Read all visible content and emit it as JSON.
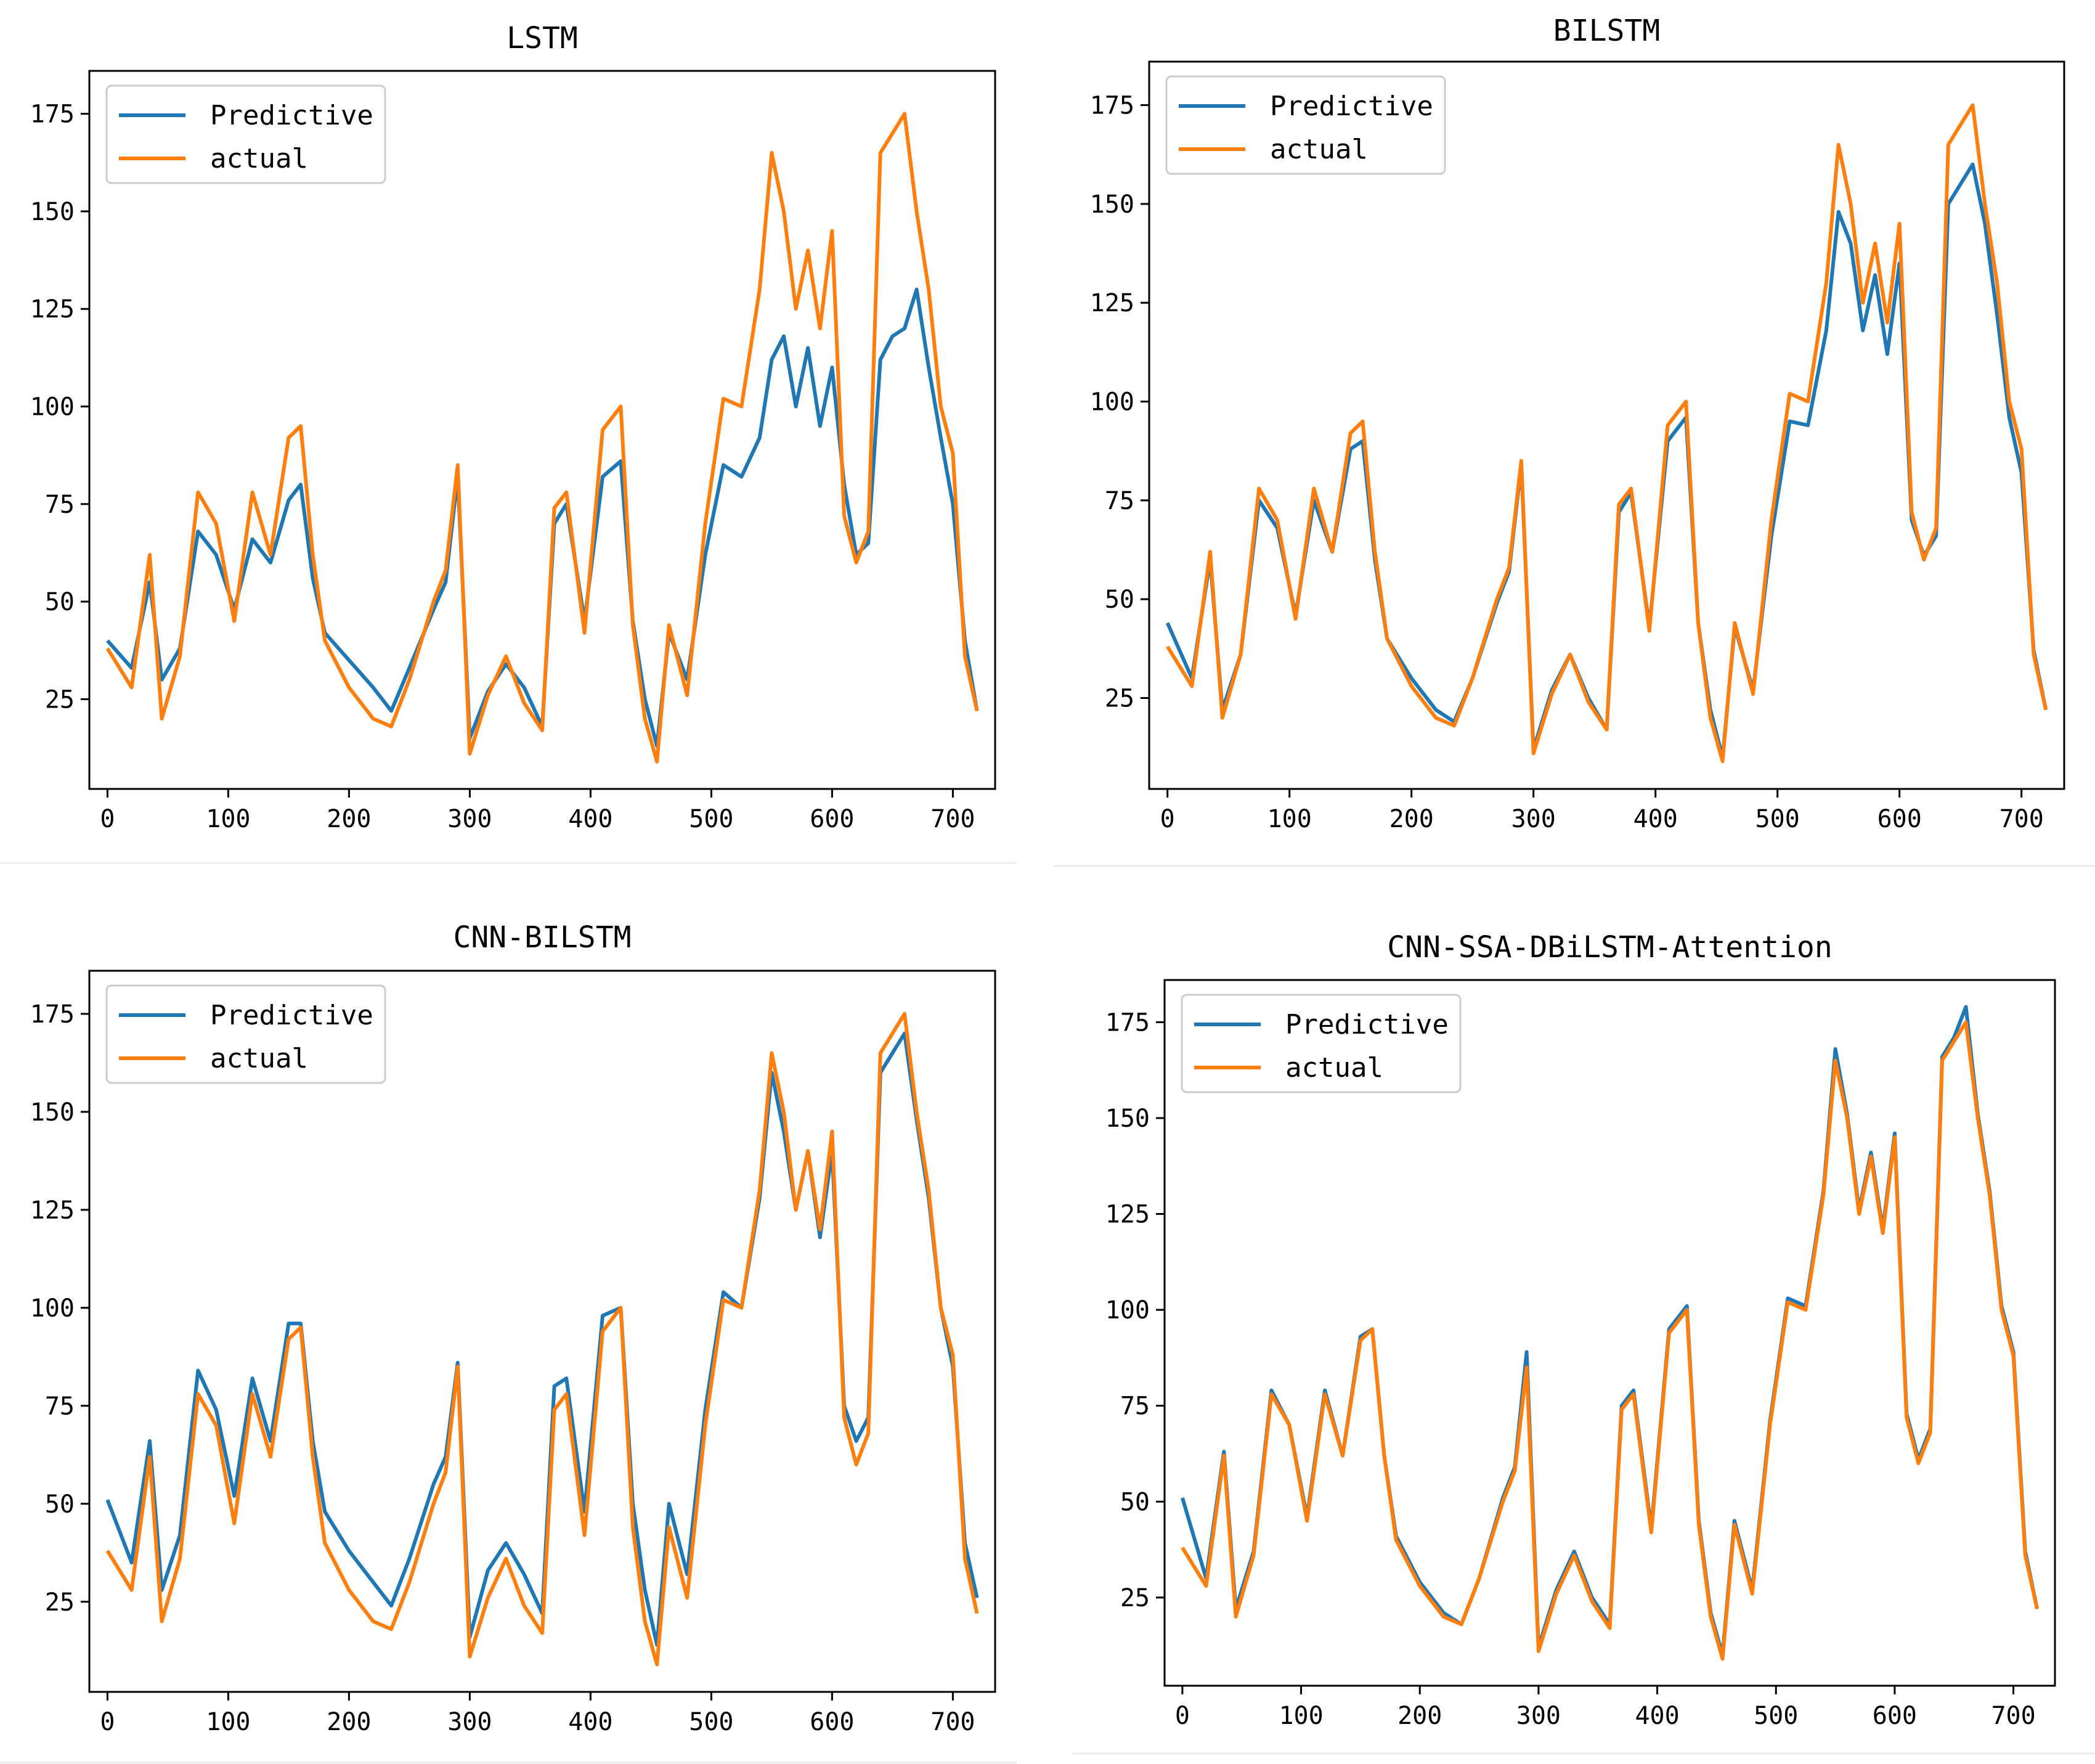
{
  "figure": {
    "description_panels": 4
  },
  "colors": {
    "predictive": "#1f77b4",
    "actual": "#ff7f0e",
    "frame": "#000000",
    "legend_border": "#cccccc"
  },
  "chart_data": [
    {
      "type": "line",
      "title": "LSTM",
      "xlabel": "",
      "ylabel": "",
      "xlim": [
        -15,
        735
      ],
      "ylim": [
        2,
        186
      ],
      "xticks": [
        0,
        100,
        200,
        300,
        400,
        500,
        600,
        700
      ],
      "yticks": [
        25,
        50,
        75,
        100,
        125,
        150,
        175
      ],
      "legend": {
        "placement": "top-left",
        "entries": [
          "Predictive",
          "actual"
        ]
      },
      "series": [
        {
          "name": "Predictive",
          "x": [
            0,
            20,
            35,
            45,
            60,
            75,
            90,
            105,
            120,
            135,
            150,
            160,
            170,
            180,
            200,
            220,
            235,
            250,
            270,
            280,
            290,
            300,
            315,
            330,
            345,
            360,
            370,
            380,
            395,
            410,
            425,
            435,
            445,
            455,
            465,
            480,
            495,
            510,
            525,
            540,
            550,
            560,
            570,
            580,
            590,
            600,
            610,
            620,
            630,
            640,
            650,
            660,
            670,
            680,
            690,
            700,
            710,
            720
          ],
          "values": [
            40,
            33,
            55,
            30,
            38,
            68,
            62,
            48,
            66,
            60,
            76,
            80,
            56,
            42,
            35,
            28,
            22,
            33,
            48,
            55,
            82,
            15,
            27,
            34,
            28,
            18,
            70,
            75,
            45,
            82,
            86,
            45,
            25,
            13,
            42,
            30,
            62,
            85,
            82,
            92,
            112,
            118,
            100,
            115,
            95,
            110,
            80,
            62,
            65,
            112,
            118,
            120,
            130,
            110,
            92,
            75,
            40,
            22
          ]
        },
        {
          "name": "actual",
          "x": [
            0,
            20,
            35,
            45,
            60,
            75,
            90,
            105,
            120,
            135,
            150,
            160,
            170,
            180,
            200,
            220,
            235,
            250,
            270,
            280,
            290,
            300,
            315,
            330,
            345,
            360,
            370,
            380,
            395,
            410,
            425,
            435,
            445,
            455,
            465,
            480,
            495,
            510,
            525,
            540,
            550,
            560,
            570,
            580,
            590,
            600,
            610,
            620,
            630,
            640,
            650,
            660,
            670,
            680,
            690,
            700,
            710,
            720
          ],
          "values": [
            38,
            28,
            62,
            20,
            36,
            78,
            70,
            45,
            78,
            62,
            92,
            95,
            62,
            40,
            28,
            20,
            18,
            30,
            50,
            58,
            85,
            11,
            26,
            36,
            24,
            17,
            74,
            78,
            42,
            94,
            100,
            44,
            20,
            9,
            44,
            26,
            70,
            102,
            100,
            130,
            165,
            150,
            125,
            140,
            120,
            145,
            72,
            60,
            68,
            165,
            170,
            175,
            150,
            130,
            100,
            88,
            36,
            22
          ]
        }
      ]
    },
    {
      "type": "line",
      "title": "BILSTM",
      "xlabel": "",
      "ylabel": "",
      "xlim": [
        -15,
        735
      ],
      "ylim": [
        2,
        186
      ],
      "xticks": [
        0,
        100,
        200,
        300,
        400,
        500,
        600,
        700
      ],
      "yticks": [
        25,
        50,
        75,
        100,
        125,
        150,
        175
      ],
      "legend": {
        "placement": "top-left",
        "entries": [
          "Predictive",
          "actual"
        ]
      },
      "series": [
        {
          "name": "Predictive",
          "x": [
            0,
            20,
            35,
            45,
            60,
            75,
            90,
            105,
            120,
            135,
            150,
            160,
            170,
            180,
            200,
            220,
            235,
            250,
            270,
            280,
            290,
            300,
            315,
            330,
            345,
            360,
            370,
            380,
            395,
            410,
            425,
            435,
            445,
            455,
            465,
            480,
            495,
            510,
            525,
            540,
            550,
            560,
            570,
            580,
            590,
            600,
            610,
            620,
            630,
            640,
            650,
            660,
            670,
            680,
            690,
            700,
            710,
            720
          ],
          "values": [
            44,
            30,
            60,
            22,
            36,
            75,
            68,
            46,
            75,
            62,
            88,
            90,
            60,
            40,
            30,
            22,
            19,
            30,
            49,
            57,
            84,
            12,
            27,
            36,
            25,
            17,
            72,
            77,
            43,
            90,
            96,
            44,
            22,
            10,
            43,
            27,
            66,
            95,
            94,
            118,
            148,
            140,
            118,
            132,
            112,
            135,
            70,
            61,
            66,
            150,
            155,
            160,
            145,
            122,
            96,
            82,
            37,
            22
          ]
        },
        {
          "name": "actual",
          "x": [
            0,
            20,
            35,
            45,
            60,
            75,
            90,
            105,
            120,
            135,
            150,
            160,
            170,
            180,
            200,
            220,
            235,
            250,
            270,
            280,
            290,
            300,
            315,
            330,
            345,
            360,
            370,
            380,
            395,
            410,
            425,
            435,
            445,
            455,
            465,
            480,
            495,
            510,
            525,
            540,
            550,
            560,
            570,
            580,
            590,
            600,
            610,
            620,
            630,
            640,
            650,
            660,
            670,
            680,
            690,
            700,
            710,
            720
          ],
          "values": [
            38,
            28,
            62,
            20,
            36,
            78,
            70,
            45,
            78,
            62,
            92,
            95,
            62,
            40,
            28,
            20,
            18,
            30,
            50,
            58,
            85,
            11,
            26,
            36,
            24,
            17,
            74,
            78,
            42,
            94,
            100,
            44,
            20,
            9,
            44,
            26,
            70,
            102,
            100,
            130,
            165,
            150,
            125,
            140,
            120,
            145,
            72,
            60,
            68,
            165,
            170,
            175,
            150,
            130,
            100,
            88,
            36,
            22
          ]
        }
      ]
    },
    {
      "type": "line",
      "title": "CNN-BILSTM",
      "xlabel": "",
      "ylabel": "",
      "xlim": [
        -15,
        735
      ],
      "ylim": [
        2,
        186
      ],
      "xticks": [
        0,
        100,
        200,
        300,
        400,
        500,
        600,
        700
      ],
      "yticks": [
        25,
        50,
        75,
        100,
        125,
        150,
        175
      ],
      "legend": {
        "placement": "top-left",
        "entries": [
          "Predictive",
          "actual"
        ]
      },
      "series": [
        {
          "name": "Predictive",
          "x": [
            0,
            20,
            35,
            45,
            60,
            75,
            90,
            105,
            120,
            135,
            150,
            160,
            170,
            180,
            200,
            220,
            235,
            250,
            270,
            280,
            290,
            300,
            315,
            330,
            345,
            360,
            370,
            380,
            395,
            410,
            425,
            435,
            445,
            455,
            465,
            480,
            495,
            510,
            525,
            540,
            550,
            560,
            570,
            580,
            590,
            600,
            610,
            620,
            630,
            640,
            650,
            660,
            670,
            680,
            690,
            700,
            710,
            720
          ],
          "values": [
            51,
            35,
            66,
            28,
            42,
            84,
            74,
            52,
            82,
            66,
            96,
            96,
            66,
            48,
            38,
            30,
            24,
            36,
            55,
            62,
            86,
            16,
            33,
            40,
            32,
            22,
            80,
            82,
            48,
            98,
            100,
            50,
            28,
            14,
            50,
            32,
            74,
            104,
            100,
            128,
            160,
            145,
            125,
            140,
            118,
            140,
            75,
            66,
            72,
            160,
            165,
            170,
            148,
            128,
            100,
            85,
            40,
            26
          ]
        },
        {
          "name": "actual",
          "x": [
            0,
            20,
            35,
            45,
            60,
            75,
            90,
            105,
            120,
            135,
            150,
            160,
            170,
            180,
            200,
            220,
            235,
            250,
            270,
            280,
            290,
            300,
            315,
            330,
            345,
            360,
            370,
            380,
            395,
            410,
            425,
            435,
            445,
            455,
            465,
            480,
            495,
            510,
            525,
            540,
            550,
            560,
            570,
            580,
            590,
            600,
            610,
            620,
            630,
            640,
            650,
            660,
            670,
            680,
            690,
            700,
            710,
            720
          ],
          "values": [
            38,
            28,
            62,
            20,
            36,
            78,
            70,
            45,
            78,
            62,
            92,
            95,
            62,
            40,
            28,
            20,
            18,
            30,
            50,
            58,
            85,
            11,
            26,
            36,
            24,
            17,
            74,
            78,
            42,
            94,
            100,
            44,
            20,
            9,
            44,
            26,
            70,
            102,
            100,
            130,
            165,
            150,
            125,
            140,
            120,
            145,
            72,
            60,
            68,
            165,
            170,
            175,
            150,
            130,
            100,
            88,
            36,
            22
          ]
        }
      ]
    },
    {
      "type": "line",
      "title": "CNN-SSA-DBiLSTM-Attention",
      "xlabel": "",
      "ylabel": "",
      "xlim": [
        -15,
        735
      ],
      "ylim": [
        2,
        186
      ],
      "xticks": [
        0,
        100,
        200,
        300,
        400,
        500,
        600,
        700
      ],
      "yticks": [
        25,
        50,
        75,
        100,
        125,
        150,
        175
      ],
      "legend": {
        "placement": "top-left",
        "entries": [
          "Predictive",
          "actual"
        ]
      },
      "series": [
        {
          "name": "Predictive",
          "x": [
            0,
            20,
            35,
            45,
            60,
            75,
            90,
            105,
            120,
            135,
            150,
            160,
            170,
            180,
            200,
            220,
            235,
            250,
            270,
            280,
            290,
            300,
            315,
            330,
            345,
            360,
            370,
            380,
            395,
            410,
            425,
            435,
            445,
            455,
            465,
            480,
            495,
            510,
            525,
            540,
            550,
            560,
            570,
            580,
            590,
            600,
            610,
            620,
            630,
            640,
            650,
            660,
            670,
            680,
            690,
            700,
            710,
            720
          ],
          "values": [
            51,
            30,
            63,
            22,
            37,
            79,
            70,
            46,
            79,
            62,
            93,
            95,
            62,
            41,
            29,
            21,
            18,
            30,
            51,
            59,
            89,
            12,
            27,
            37,
            25,
            18,
            75,
            79,
            43,
            95,
            101,
            45,
            21,
            10,
            45,
            27,
            71,
            103,
            101,
            131,
            168,
            151,
            126,
            141,
            121,
            146,
            73,
            61,
            69,
            166,
            171,
            179,
            151,
            131,
            101,
            89,
            37,
            22
          ]
        },
        {
          "name": "actual",
          "x": [
            0,
            20,
            35,
            45,
            60,
            75,
            90,
            105,
            120,
            135,
            150,
            160,
            170,
            180,
            200,
            220,
            235,
            250,
            270,
            280,
            290,
            300,
            315,
            330,
            345,
            360,
            370,
            380,
            395,
            410,
            425,
            435,
            445,
            455,
            465,
            480,
            495,
            510,
            525,
            540,
            550,
            560,
            570,
            580,
            590,
            600,
            610,
            620,
            630,
            640,
            650,
            660,
            670,
            680,
            690,
            700,
            710,
            720
          ],
          "values": [
            38,
            28,
            62,
            20,
            36,
            78,
            70,
            45,
            78,
            62,
            92,
            95,
            62,
            40,
            28,
            20,
            18,
            30,
            50,
            58,
            85,
            11,
            26,
            36,
            24,
            17,
            74,
            78,
            42,
            94,
            100,
            44,
            20,
            9,
            44,
            26,
            70,
            102,
            100,
            130,
            165,
            150,
            125,
            140,
            120,
            145,
            72,
            60,
            68,
            165,
            170,
            175,
            150,
            130,
            100,
            88,
            36,
            22
          ]
        }
      ]
    }
  ]
}
